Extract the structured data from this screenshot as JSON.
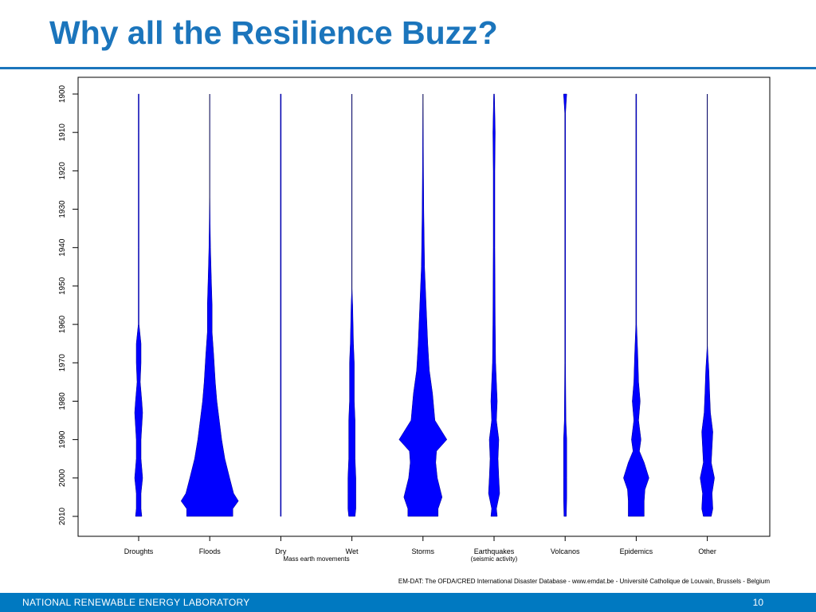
{
  "slide": {
    "title": "Why all the Resilience Buzz?",
    "source": "EM-DAT: The OFDA/CRED International Disaster Database - www.emdat.be - Université Catholique de Louvain, Brussels - Belgium",
    "footer_org": "NATIONAL RENEWABLE ENERGY LABORATORY",
    "page_number": "10"
  },
  "colors": {
    "accent": "#1b75bc",
    "footer": "#0079c1",
    "violin": "#0000ff"
  },
  "chart_data": {
    "type": "area",
    "title": "",
    "xlabel": "",
    "ylabel": "",
    "y_axis": "year",
    "ylim": [
      1900,
      2010
    ],
    "yticks": [
      "1900",
      "1910",
      "1920",
      "1930",
      "1940",
      "1950",
      "1960",
      "1970",
      "1980",
      "1990",
      "2000",
      "2010"
    ],
    "group_label": "Mass earth movements",
    "max_half_width": 36,
    "categories": [
      {
        "label": "Droughts",
        "sub": "",
        "profile": [
          [
            1900,
            0.5
          ],
          [
            1910,
            0.5
          ],
          [
            1940,
            0.5
          ],
          [
            1960,
            0.5
          ],
          [
            1965,
            3
          ],
          [
            1970,
            3
          ],
          [
            1975,
            2
          ],
          [
            1980,
            4
          ],
          [
            1983,
            5
          ],
          [
            1990,
            3
          ],
          [
            1995,
            3
          ],
          [
            2000,
            5
          ],
          [
            2004,
            3
          ],
          [
            2008,
            3
          ],
          [
            2010,
            4
          ]
        ]
      },
      {
        "label": "Floods",
        "sub": "",
        "profile": [
          [
            1900,
            0
          ],
          [
            1926,
            0
          ],
          [
            1940,
            1
          ],
          [
            1948,
            2
          ],
          [
            1955,
            3
          ],
          [
            1962,
            3
          ],
          [
            1968,
            5
          ],
          [
            1975,
            7
          ],
          [
            1980,
            9
          ],
          [
            1985,
            12
          ],
          [
            1990,
            15
          ],
          [
            1995,
            19
          ],
          [
            2000,
            25
          ],
          [
            2004,
            30
          ],
          [
            2006,
            36
          ],
          [
            2008,
            29
          ],
          [
            2010,
            29
          ]
        ]
      },
      {
        "label": "Dry",
        "sub": "",
        "profile": [
          [
            1900,
            0.5
          ],
          [
            2010,
            0.5
          ]
        ]
      },
      {
        "label": "Wet",
        "sub": "",
        "profile": [
          [
            1900,
            0
          ],
          [
            1950,
            0
          ],
          [
            1955,
            1
          ],
          [
            1965,
            2
          ],
          [
            1970,
            3
          ],
          [
            1980,
            3
          ],
          [
            1985,
            4
          ],
          [
            1990,
            4
          ],
          [
            1995,
            4
          ],
          [
            2000,
            5
          ],
          [
            2004,
            5
          ],
          [
            2008,
            5
          ],
          [
            2010,
            4
          ]
        ]
      },
      {
        "label": "Storms",
        "sub": "",
        "profile": [
          [
            1900,
            0
          ],
          [
            1930,
            1
          ],
          [
            1945,
            2
          ],
          [
            1955,
            4
          ],
          [
            1965,
            6
          ],
          [
            1972,
            8
          ],
          [
            1978,
            12
          ],
          [
            1985,
            15
          ],
          [
            1990,
            30
          ],
          [
            1993,
            17
          ],
          [
            1996,
            16
          ],
          [
            2000,
            18
          ],
          [
            2005,
            24
          ],
          [
            2008,
            19
          ],
          [
            2010,
            19
          ]
        ]
      },
      {
        "label": "Earthquakes",
        "sub": "(seismic activity)",
        "profile": [
          [
            1900,
            0.5
          ],
          [
            1910,
            1.5
          ],
          [
            1920,
            1
          ],
          [
            1940,
            1
          ],
          [
            1960,
            1.5
          ],
          [
            1970,
            2
          ],
          [
            1975,
            3
          ],
          [
            1980,
            4
          ],
          [
            1985,
            3
          ],
          [
            1990,
            6
          ],
          [
            1995,
            5
          ],
          [
            2000,
            6
          ],
          [
            2004,
            7
          ],
          [
            2008,
            3
          ],
          [
            2010,
            4
          ]
        ]
      },
      {
        "label": "Volcanos",
        "sub": "",
        "profile": [
          [
            1900,
            2
          ],
          [
            1905,
            0.5
          ],
          [
            1960,
            0.5
          ],
          [
            1970,
            0.5
          ],
          [
            1985,
            1
          ],
          [
            1990,
            2
          ],
          [
            2000,
            2
          ],
          [
            2005,
            2
          ],
          [
            2010,
            1.5
          ]
        ]
      },
      {
        "label": "Epidemics",
        "sub": "",
        "profile": [
          [
            1900,
            0.5
          ],
          [
            1920,
            0.5
          ],
          [
            1960,
            0.5
          ],
          [
            1968,
            2
          ],
          [
            1975,
            3
          ],
          [
            1980,
            5
          ],
          [
            1985,
            3
          ],
          [
            1990,
            6
          ],
          [
            1993,
            4
          ],
          [
            1996,
            10
          ],
          [
            2000,
            16
          ],
          [
            2003,
            11
          ],
          [
            2006,
            10
          ],
          [
            2010,
            10
          ]
        ]
      },
      {
        "label": "Other",
        "sub": "",
        "profile": [
          [
            1900,
            0
          ],
          [
            1965,
            0
          ],
          [
            1972,
            2
          ],
          [
            1978,
            3
          ],
          [
            1983,
            4
          ],
          [
            1988,
            7
          ],
          [
            1992,
            6
          ],
          [
            1996,
            5
          ],
          [
            2000,
            9
          ],
          [
            2004,
            6
          ],
          [
            2008,
            7
          ],
          [
            2010,
            5
          ]
        ]
      }
    ]
  }
}
